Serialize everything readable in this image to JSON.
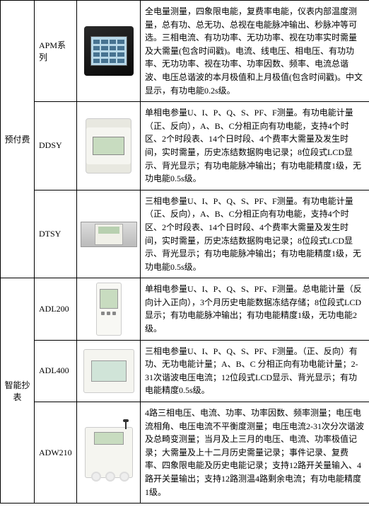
{
  "categories": [
    {
      "label": "预付费"
    },
    {
      "label": "智能抄表"
    }
  ],
  "rows": [
    {
      "model": "APM系列",
      "desc": "全电量测量，四象限电能，复费率电能，仪表内部温度测量，总有功、总无功、总视在电能脉冲输出、秒脉冲等可选。三相电流、有功功率、无功功率、视在功率实时需量及大需量(包含时间戳)。电流、线电压、相电压、有功功率、无功功率、视在功率、功率因数、频率、电流总谐波、电压总谐波的本月极值和上月极值(包含时间戳)。中文显示，有功电能0.2s级。"
    },
    {
      "model": "DDSY",
      "desc": "单相电参量U、I、P、Q、S、PF、F测量。有功电能计量（正、反向），A、B、C分相正向有功电能，支持4个时区、2个时段表、14个日时段、4个费率大需量及发生时间，实时需量，历史冻结数据购电记录；8位段式LCD显示、背光显示；有功电能脉冲输出；有功电能精度1级，无功电能0.5s级。"
    },
    {
      "model": "DTSY",
      "desc": "三相电参量U、I、P、Q、S、PF、F测量。有功电能计量（正、反向），A、B、C分相正向有功电能，支持4个时区、2个时段表、14个日时段、4个费率大需量及发生时间，实时需量，历史冻结数据购电记录；8位段式LCD显示、背光显示；有功电能脉冲输出；有功电能精度1级，无功电能0.5s级。"
    },
    {
      "model": "ADL200",
      "desc": "单相电参量U、I、P、Q、S、PF、F测量。总电能计量（反向计入正向），3个月历史电能数据冻结存储；8位段式LCD显示；有功电能脉冲输出；有功电能精度1级，无功电能2级。"
    },
    {
      "model": "ADL400",
      "desc": "三相电参量U、I、P、Q、S、PF、F测量。（正、反向）有功、无功电能计量；A、B、C 分相正向有功电能计量；2-31次谐波电压电流；12位段式LCD显示、背光显示；有功电能精度0.5s级。"
    },
    {
      "model": "ADW210",
      "desc": "4路三相电压、电流、功率、功率因数、频率测量；电压电流相角、电压电流不平衡度测量；电压电流2-31次分次谐波及总畸变测量；当月及上三月的电压、电流、功率极值记录；大需量及上十二月历史需量记录；事件记录、复费率、四象限电能及历史电能记录；支持12路开关量输入、4路开关量输出；支持12路测温4路剩余电流；有功电能精度1级。"
    }
  ]
}
